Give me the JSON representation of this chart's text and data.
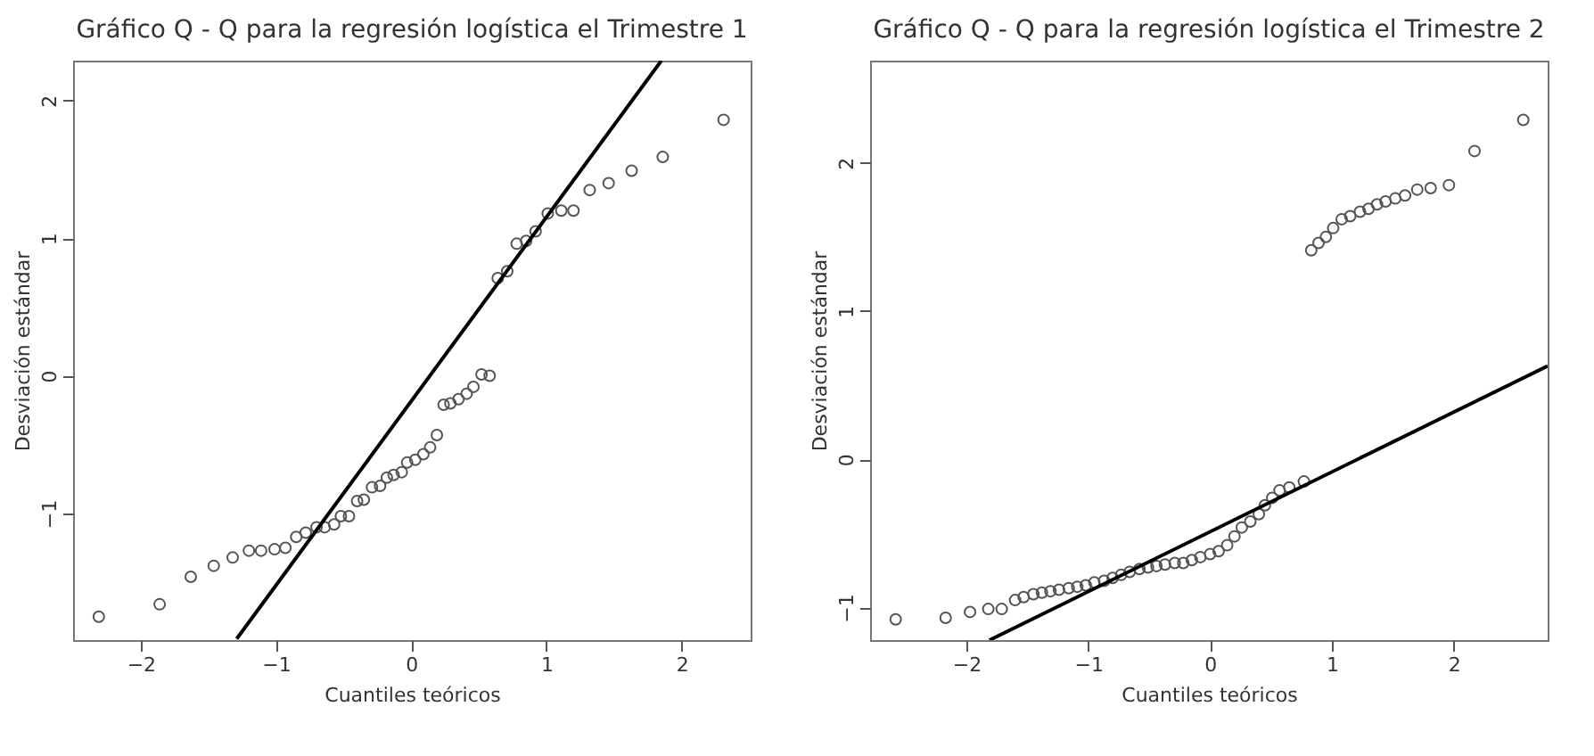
{
  "chart_data": [
    {
      "type": "scatter",
      "title": "Gráfico Q - Q para la regresión logística el Trimestre 1",
      "xlabel": "Cuantiles teóricos",
      "ylabel": "Desviación estándar",
      "xlim": [
        -2.5,
        2.51
      ],
      "ylim": [
        -1.92,
        2.29
      ],
      "xticks": [
        -2,
        -1,
        0,
        1,
        2
      ],
      "yticks": [
        -1,
        0,
        1,
        2
      ],
      "grid": false,
      "series": [
        {
          "marker": "circle",
          "color": "#555555",
          "x": [
            -2.31,
            -1.86,
            -1.63,
            -1.46,
            -1.32,
            -1.2,
            -1.11,
            -1.01,
            -0.93,
            -0.85,
            -0.78,
            -0.7,
            -0.64,
            -0.57,
            -0.52,
            -0.46,
            -0.4,
            -0.35,
            -0.29,
            -0.23,
            -0.18,
            -0.13,
            -0.07,
            -0.03,
            0.03,
            0.09,
            0.14,
            0.19,
            0.24,
            0.29,
            0.35,
            0.41,
            0.46,
            0.52,
            0.58,
            0.64,
            0.71,
            0.78,
            0.85,
            0.92,
            1.01,
            1.11,
            1.2,
            1.32,
            1.46,
            1.63,
            1.86,
            2.31
          ],
          "values": [
            -1.75,
            -1.66,
            -1.46,
            -1.38,
            -1.32,
            -1.27,
            -1.27,
            -1.26,
            -1.25,
            -1.17,
            -1.14,
            -1.1,
            -1.1,
            -1.08,
            -1.02,
            -1.02,
            -0.91,
            -0.9,
            -0.81,
            -0.8,
            -0.74,
            -0.72,
            -0.7,
            -0.63,
            -0.61,
            -0.57,
            -0.52,
            -0.43,
            -0.21,
            -0.2,
            -0.17,
            -0.13,
            -0.08,
            0.01,
            0,
            0.71,
            0.76,
            0.96,
            0.98,
            1.05,
            1.18,
            1.2,
            1.2,
            1.35,
            1.4,
            1.49,
            1.59,
            1.86
          ]
        },
        {
          "type": "line",
          "color": "#000000",
          "x": [
            -1.29,
            1.85
          ],
          "values": [
            -1.91,
            2.29
          ]
        }
      ]
    },
    {
      "type": "scatter",
      "title": "Gráfico Q - Q para la regresión logística el Trimestre 2",
      "xlabel": "Cuantiles teóricos",
      "ylabel": "Desviación estándar",
      "xlim": [
        -2.79,
        2.77
      ],
      "ylim": [
        -1.22,
        2.69
      ],
      "xticks": [
        -2,
        -1,
        0,
        1,
        2
      ],
      "yticks": [
        -1,
        0,
        1,
        2
      ],
      "grid": false,
      "series": [
        {
          "marker": "circle",
          "color": "#555555",
          "x": [
            -2.58,
            -2.17,
            -1.97,
            -1.82,
            -1.71,
            -1.6,
            -1.53,
            -1.45,
            -1.38,
            -1.31,
            -1.24,
            -1.16,
            -1.09,
            -1.02,
            -0.95,
            -0.87,
            -0.8,
            -0.73,
            -0.66,
            -0.58,
            -0.51,
            -0.44,
            -0.37,
            -0.29,
            -0.22,
            -0.15,
            -0.08,
            0,
            0.07,
            0.14,
            0.2,
            0.26,
            0.33,
            0.4,
            0.45,
            0.51,
            0.57,
            0.65,
            0.77,
            0.83,
            0.89,
            0.95,
            1.01,
            1.08,
            1.15,
            1.23,
            1.3,
            1.37,
            1.44,
            1.52,
            1.6,
            1.7,
            1.81,
            1.96,
            2.17,
            2.57
          ],
          "values": [
            -1.08,
            -1.07,
            -1.03,
            -1.01,
            -1.01,
            -0.95,
            -0.93,
            -0.91,
            -0.9,
            -0.89,
            -0.88,
            -0.87,
            -0.86,
            -0.85,
            -0.83,
            -0.82,
            -0.8,
            -0.78,
            -0.76,
            -0.74,
            -0.73,
            -0.72,
            -0.71,
            -0.7,
            -0.7,
            -0.68,
            -0.66,
            -0.64,
            -0.62,
            -0.58,
            -0.52,
            -0.46,
            -0.42,
            -0.37,
            -0.31,
            -0.26,
            -0.21,
            -0.19,
            -0.15,
            1.41,
            1.46,
            1.5,
            1.56,
            1.62,
            1.64,
            1.67,
            1.69,
            1.72,
            1.74,
            1.76,
            1.78,
            1.82,
            1.83,
            1.85,
            2.08,
            2.29
          ]
        },
        {
          "type": "line",
          "color": "#000000",
          "x": [
            -1.81,
            2.77
          ],
          "values": [
            -1.22,
            0.63
          ]
        }
      ]
    }
  ]
}
